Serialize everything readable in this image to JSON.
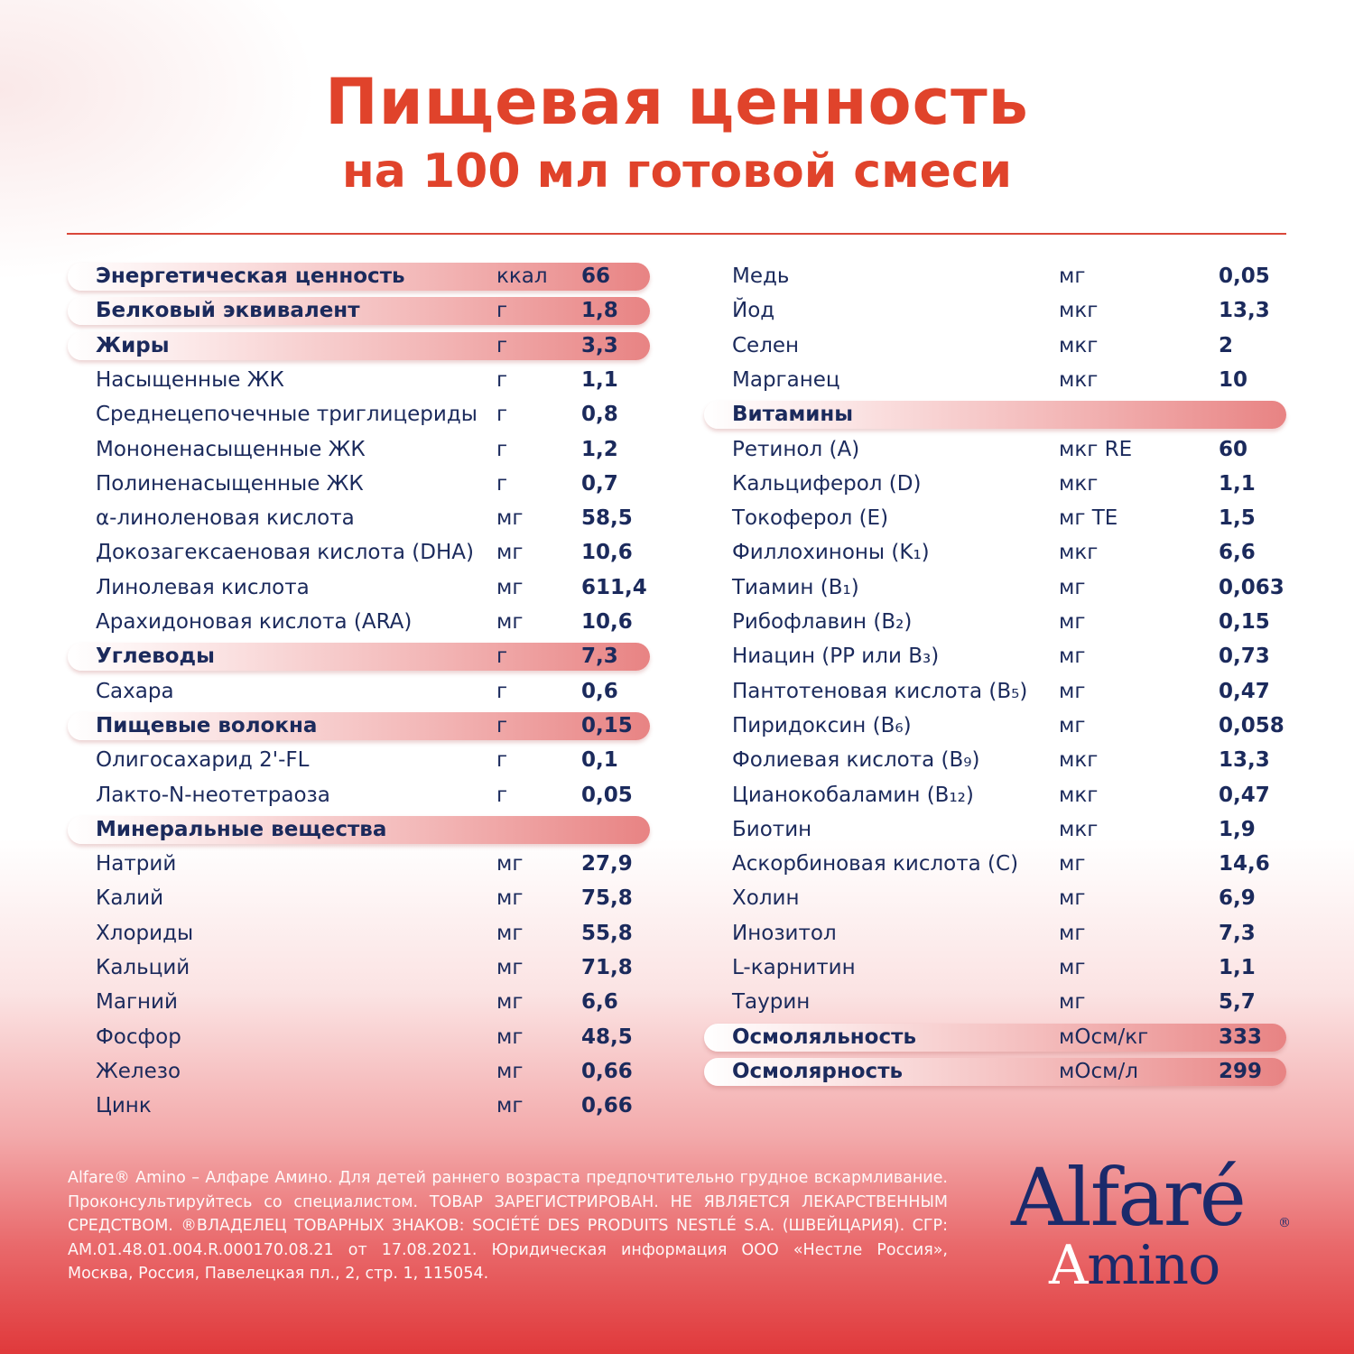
{
  "title": "Пищевая ценность",
  "subtitle": "на 100 мл готовой смеси",
  "colors": {
    "title": "#e0432b",
    "text": "#1b2a5c",
    "highlight": "#e88383",
    "background_bottom": "#e0393b"
  },
  "left_rows": [
    {
      "name": "Энергетическая ценность",
      "unit": "ккал",
      "value": "66",
      "highlight": true
    },
    {
      "name": "Белковый эквивалент",
      "unit": "г",
      "value": "1,8",
      "highlight": true
    },
    {
      "name": "Жиры",
      "unit": "г",
      "value": "3,3",
      "highlight": true
    },
    {
      "name": "Насыщенные ЖК",
      "unit": "г",
      "value": "1,1"
    },
    {
      "name": "Среднецепочечные триглицериды",
      "unit": "г",
      "value": "0,8"
    },
    {
      "name": "Мононенасыщенные ЖК",
      "unit": "г",
      "value": "1,2"
    },
    {
      "name": "Полиненасыщенные ЖК",
      "unit": "г",
      "value": "0,7"
    },
    {
      "name": "α-линоленовая кислота",
      "unit": "мг",
      "value": "58,5"
    },
    {
      "name": "Докозагексаеновая кислота (DHA)",
      "unit": "мг",
      "value": "10,6"
    },
    {
      "name": "Линолевая кислота",
      "unit": "мг",
      "value": "611,4"
    },
    {
      "name": "Арахидоновая кислота (ARA)",
      "unit": "мг",
      "value": "10,6"
    },
    {
      "name": "Углеводы",
      "unit": "г",
      "value": "7,3",
      "highlight": true
    },
    {
      "name": "Сахара",
      "unit": "г",
      "value": "0,6"
    },
    {
      "name": "Пищевые волокна",
      "unit": "г",
      "value": "0,15",
      "highlight": true
    },
    {
      "name": "Олигосахарид 2'-FL",
      "unit": "г",
      "value": "0,1"
    },
    {
      "name": "Лакто-N-неотетраоза",
      "unit": "г",
      "value": "0,05"
    },
    {
      "name": "Минеральные вещества",
      "unit": "",
      "value": "",
      "highlight": true
    },
    {
      "name": "Натрий",
      "unit": "мг",
      "value": "27,9"
    },
    {
      "name": "Калий",
      "unit": "мг",
      "value": "75,8"
    },
    {
      "name": "Хлориды",
      "unit": "мг",
      "value": "55,8"
    },
    {
      "name": "Кальций",
      "unit": "мг",
      "value": "71,8"
    },
    {
      "name": "Магний",
      "unit": "мг",
      "value": "6,6"
    },
    {
      "name": "Фосфор",
      "unit": "мг",
      "value": "48,5"
    },
    {
      "name": "Железо",
      "unit": "мг",
      "value": "0,66"
    },
    {
      "name": "Цинк",
      "unit": "мг",
      "value": "0,66"
    }
  ],
  "right_rows": [
    {
      "name": "Медь",
      "unit": "мг",
      "value": "0,05"
    },
    {
      "name": "Йод",
      "unit": "мкг",
      "value": "13,3"
    },
    {
      "name": "Селен",
      "unit": "мкг",
      "value": "2"
    },
    {
      "name": "Марганец",
      "unit": "мкг",
      "value": "10"
    },
    {
      "name": "Витамины",
      "unit": "",
      "value": "",
      "highlight": true
    },
    {
      "name": "Ретинол (A)",
      "unit": "мкг RE",
      "value": "60"
    },
    {
      "name": "Кальциферол (D)",
      "unit": "мкг",
      "value": "1,1"
    },
    {
      "name": "Токоферол (E)",
      "unit": "мг TE",
      "value": "1,5"
    },
    {
      "name": "Филлохиноны (K₁)",
      "unit": "мкг",
      "value": "6,6"
    },
    {
      "name": "Тиамин (B₁)",
      "unit": "мг",
      "value": "0,063"
    },
    {
      "name": "Рибофлавин (B₂)",
      "unit": "мг",
      "value": "0,15"
    },
    {
      "name": "Ниацин (PP или B₃)",
      "unit": "мг",
      "value": "0,73"
    },
    {
      "name": "Пантотеновая кислота (B₅)",
      "unit": "мг",
      "value": "0,47"
    },
    {
      "name": "Пиридоксин (B₆)",
      "unit": "мг",
      "value": "0,058"
    },
    {
      "name": "Фолиевая кислота (B₉)",
      "unit": "мкг",
      "value": "13,3"
    },
    {
      "name": "Цианокобаламин (B₁₂)",
      "unit": "мкг",
      "value": "0,47"
    },
    {
      "name": "Биотин",
      "unit": "мкг",
      "value": "1,9"
    },
    {
      "name": "Аскорбиновая кислота (C)",
      "unit": "мг",
      "value": "14,6"
    },
    {
      "name": "Холин",
      "unit": "мг",
      "value": "6,9"
    },
    {
      "name": "Инозитол",
      "unit": "мг",
      "value": "7,3"
    },
    {
      "name": "L-карнитин",
      "unit": "мг",
      "value": "1,1"
    },
    {
      "name": "Таурин",
      "unit": "мг",
      "value": "5,7"
    },
    {
      "name": "Осмоляльность",
      "unit": "мОсм/кг",
      "value": "333",
      "highlight": true
    },
    {
      "name": "Осмолярность",
      "unit": "мОсм/л",
      "value": "299",
      "highlight": true
    }
  ],
  "footer": "Alfare® Amino – Алфаре Амино. Для детей раннего возраста предпочтительно грудное вскармливание. Проконсультируйтесь со специалистом. ТОВАР ЗАРЕГИСТРИРОВАН. НЕ ЯВЛЯЕТСЯ ЛЕКАРСТВЕННЫМ СРЕДСТВОМ. ®ВЛАДЕЛЕЦ ТОВАРНЫХ ЗНАКОВ: SOCIÉTÉ DES PRODUITS NESTLÉ S.A. (ШВЕЙЦАРИЯ). СГР: AM.01.48.01.004.R.000170.08.21 от 17.08.2021. Юридическая информация ООО «Нестле Россия», Москва, Россия, Павелецкая пл., 2, стр. 1, 115054.",
  "logo": {
    "brand": "Alfaré",
    "registered": "®",
    "product": "Amino"
  }
}
